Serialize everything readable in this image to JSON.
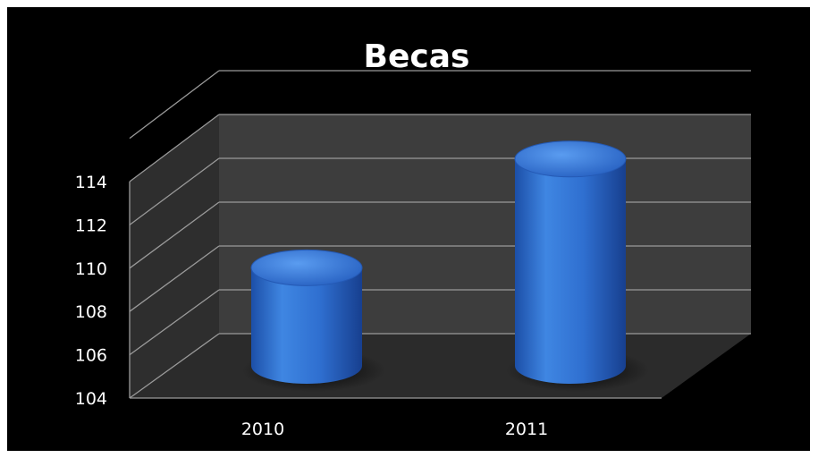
{
  "chart_data": {
    "type": "bar",
    "title": "Becas",
    "categories": [
      "2010",
      "2011"
    ],
    "values": [
      108.6,
      113.7
    ],
    "ylim": [
      104,
      114
    ],
    "yticks": [
      104,
      106,
      108,
      110,
      112,
      114
    ],
    "grid": true,
    "legend": "none",
    "bar_shape": "cylinder",
    "colors": {
      "background": "#000000",
      "bar": "#2f6fd0",
      "bar_top": "#3f84e5",
      "wall": "#3c3c3c",
      "floor": "#2c2c2c",
      "gridline": "#9a9a9a",
      "text": "#ffffff"
    }
  }
}
